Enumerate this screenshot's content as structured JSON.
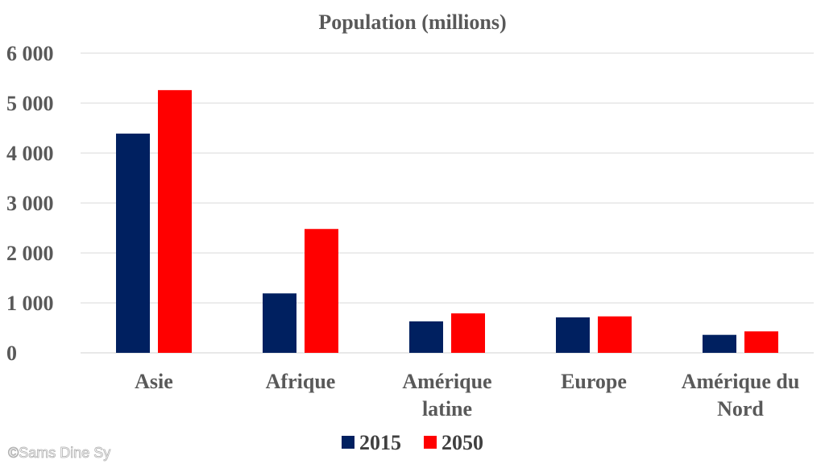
{
  "chart_data": {
    "type": "bar",
    "title": "Population (millions)",
    "categories": [
      [
        "Asie"
      ],
      [
        "Afrique"
      ],
      [
        "Amérique",
        "latine"
      ],
      [
        "Europe"
      ],
      [
        "Amérique du",
        "Nord"
      ]
    ],
    "series": [
      {
        "name": "2015",
        "color": "#002060",
        "values": [
          4390,
          1190,
          630,
          710,
          360
        ]
      },
      {
        "name": "2050",
        "color": "#ff0000",
        "values": [
          5260,
          2480,
          790,
          730,
          430
        ]
      }
    ],
    "yticks": [
      "0",
      "1 000",
      "2 000",
      "3 000",
      "4 000",
      "5 000",
      "6 000"
    ],
    "ylim": [
      0,
      6000
    ],
    "grid": true,
    "legend_position": "bottom"
  },
  "watermark": "©Sams Dine Sy"
}
